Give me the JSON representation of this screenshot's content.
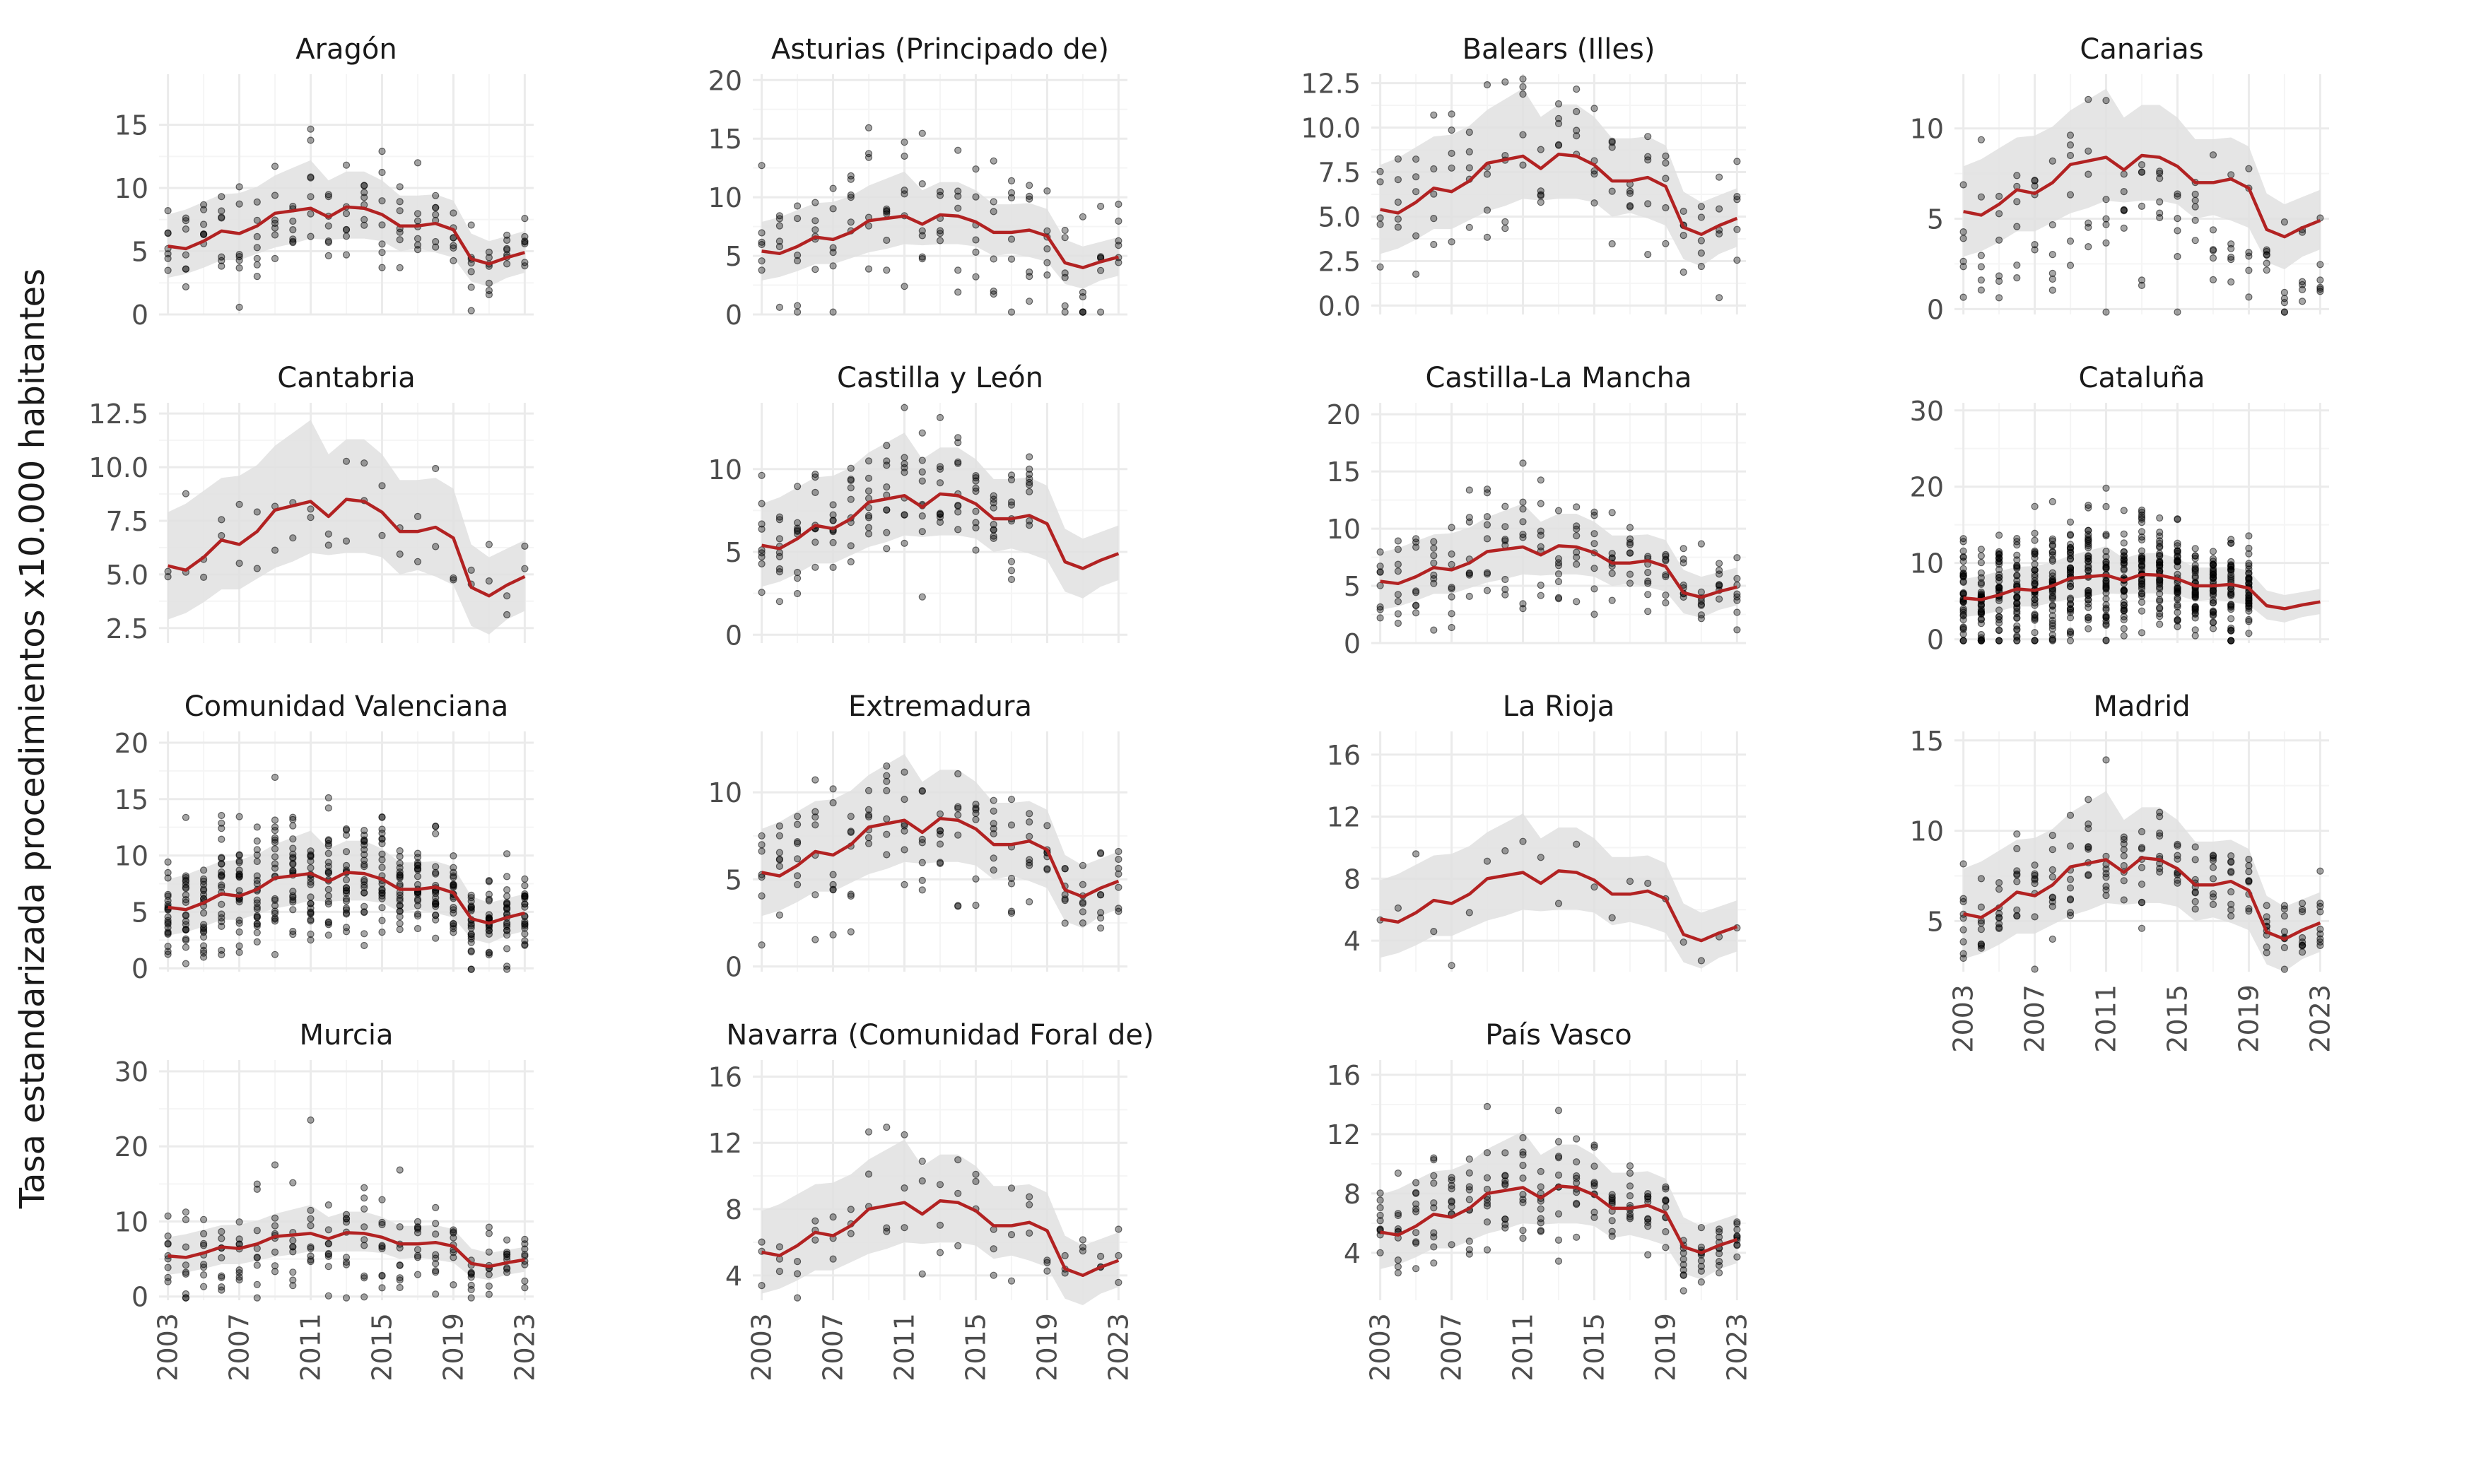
{
  "figure": {
    "ylabel": "Tasa estandarizada procedimientos x10.000 habitantes",
    "colors": {
      "trend": "#b22222",
      "band": "#e0e0e0",
      "points": "#000000",
      "grid_major": "#ebebeb",
      "grid_minor": "#f5f5f5",
      "text": "#4d4d4d"
    }
  },
  "chart_data": [
    {
      "type": "scatter",
      "title": "Aragón",
      "xlim": [
        2002.5,
        2023.5
      ],
      "ylim": [
        0,
        19
      ],
      "yticks": [
        0,
        5,
        10,
        15
      ],
      "xticks": [
        2003,
        2007,
        2011,
        2015,
        2019,
        2023
      ],
      "seed": 11,
      "pointsPerYear": 7,
      "spread": 2.4
    },
    {
      "type": "scatter",
      "title": "Asturias (Principado de)",
      "xlim": [
        2002.5,
        2023.5
      ],
      "ylim": [
        0,
        20.5
      ],
      "yticks": [
        0,
        5,
        10,
        15,
        20
      ],
      "xticks": [
        2003,
        2007,
        2011,
        2015,
        2019,
        2023
      ],
      "seed": 22,
      "pointsPerYear": 6,
      "spread": 3.6
    },
    {
      "type": "scatter",
      "title": "Balears (Illes)",
      "xlim": [
        2002.5,
        2023.5
      ],
      "ylim": [
        -0.5,
        13
      ],
      "yticks": [
        0.0,
        2.5,
        5.0,
        7.5,
        10.0,
        12.5
      ],
      "ytickDecimals": 1,
      "xticks": [
        2003,
        2007,
        2011,
        2015,
        2019,
        2023
      ],
      "seed": 33,
      "pointsPerYear": 5,
      "spread": 2.3
    },
    {
      "type": "scatter",
      "title": "Canarias",
      "xlim": [
        2002.5,
        2023.5
      ],
      "ylim": [
        -0.3,
        13
      ],
      "yticks": [
        0,
        5,
        10
      ],
      "xticks": [
        2003,
        2007,
        2011,
        2015,
        2019,
        2023
      ],
      "seed": 44,
      "pointsPerYear": 6,
      "spread": 3.0,
      "offset": -2.5
    },
    {
      "type": "scatter",
      "title": "Cantabria",
      "xlim": [
        2002.5,
        2023.5
      ],
      "ylim": [
        1.8,
        13
      ],
      "yticks": [
        2.5,
        5.0,
        7.5,
        10.0,
        12.5
      ],
      "ytickDecimals": 1,
      "xticks": [
        2003,
        2007,
        2011,
        2015,
        2019,
        2023
      ],
      "seed": 55,
      "pointsPerYear": 2,
      "spread": 1.6
    },
    {
      "type": "scatter",
      "title": "Castilla y León",
      "xlim": [
        2002.5,
        2023.5
      ],
      "ylim": [
        -0.5,
        14
      ],
      "yticks": [
        0,
        5,
        10
      ],
      "xticks": [
        2003,
        2007,
        2011,
        2015,
        2019,
        2023
      ],
      "seed": 66,
      "pointsPerYear": 9,
      "spread": 2.0,
      "yearMax": 2018
    },
    {
      "type": "scatter",
      "title": "Castilla-La Mancha",
      "xlim": [
        2002.5,
        2023.5
      ],
      "ylim": [
        0,
        21
      ],
      "yticks": [
        0,
        5,
        10,
        15,
        20
      ],
      "xticks": [
        2003,
        2007,
        2011,
        2015,
        2019,
        2023
      ],
      "seed": 77,
      "pointsPerYear": 8,
      "spread": 3.2
    },
    {
      "type": "scatter",
      "title": "Cataluña",
      "xlim": [
        2002.5,
        2023.5
      ],
      "ylim": [
        -0.5,
        31
      ],
      "yticks": [
        0,
        10,
        20,
        30
      ],
      "xticks": [
        2003,
        2007,
        2011,
        2015,
        2019,
        2023
      ],
      "seed": 88,
      "pointsPerYear": 38,
      "spread": 4.0,
      "yearMax": 2019
    },
    {
      "type": "scatter",
      "title": "Comunidad Valenciana",
      "xlim": [
        2002.5,
        2023.5
      ],
      "ylim": [
        -0.3,
        21
      ],
      "yticks": [
        0,
        5,
        10,
        15,
        20
      ],
      "xticks": [
        2003,
        2007,
        2011,
        2015,
        2019,
        2023
      ],
      "seed": 99,
      "pointsPerYear": 22,
      "spread": 3.0
    },
    {
      "type": "scatter",
      "title": "Extremadura",
      "xlim": [
        2002.5,
        2023.5
      ],
      "ylim": [
        -0.3,
        13.5
      ],
      "yticks": [
        0,
        5,
        10
      ],
      "xticks": [
        2003,
        2007,
        2011,
        2015,
        2019,
        2023
      ],
      "seed": 110,
      "pointsPerYear": 7,
      "spread": 2.3
    },
    {
      "type": "scatter",
      "title": "La Rioja",
      "xlim": [
        2002.5,
        2023.5
      ],
      "ylim": [
        2,
        17.5
      ],
      "yticks": [
        4,
        8,
        12,
        16
      ],
      "xticks": [
        2003,
        2007,
        2011,
        2015,
        2019,
        2023
      ],
      "seed": 121,
      "pointsPerYear": 1,
      "spread": 1.8
    },
    {
      "type": "scatter",
      "title": "Madrid",
      "xlim": [
        2002.5,
        2023.5
      ],
      "ylim": [
        2.2,
        15.5
      ],
      "yticks": [
        5,
        10,
        15
      ],
      "xticks": [
        2003,
        2007,
        2011,
        2015,
        2019,
        2023
      ],
      "seed": 132,
      "pointsPerYear": 9,
      "spread": 1.6
    },
    {
      "type": "scatter",
      "title": "Murcia",
      "xlim": [
        2002.5,
        2023.5
      ],
      "ylim": [
        -0.5,
        31.5
      ],
      "yticks": [
        0,
        10,
        20,
        30
      ],
      "xticks": [
        2003,
        2007,
        2011,
        2015,
        2019,
        2023
      ],
      "seed": 143,
      "pointsPerYear": 9,
      "spread": 3.8
    },
    {
      "type": "scatter",
      "title": "Navarra (Comunidad Foral de)",
      "xlim": [
        2002.5,
        2023.5
      ],
      "ylim": [
        2.5,
        17
      ],
      "yticks": [
        4,
        8,
        12,
        16
      ],
      "xticks": [
        2003,
        2007,
        2011,
        2015,
        2019,
        2023
      ],
      "seed": 154,
      "pointsPerYear": 3,
      "spread": 2.0
    },
    {
      "type": "scatter",
      "title": "País Vasco",
      "xlim": [
        2002.5,
        2023.5
      ],
      "ylim": [
        0.8,
        17
      ],
      "yticks": [
        4,
        8,
        12,
        16
      ],
      "xticks": [
        2003,
        2007,
        2011,
        2015,
        2019,
        2023
      ],
      "seed": 165,
      "pointsPerYear": 10,
      "spread": 2.0
    }
  ],
  "national_trend": {
    "years": [
      2003,
      2004,
      2005,
      2006,
      2007,
      2008,
      2009,
      2010,
      2011,
      2012,
      2013,
      2014,
      2015,
      2016,
      2017,
      2018,
      2019,
      2020,
      2021,
      2022,
      2023
    ],
    "mean": [
      5.4,
      5.2,
      5.8,
      6.6,
      6.4,
      7.0,
      8.0,
      8.2,
      8.4,
      7.7,
      8.5,
      8.4,
      7.9,
      7.0,
      7.0,
      7.2,
      6.7,
      4.4,
      4.0,
      4.5,
      4.9
    ],
    "lower": [
      2.9,
      3.2,
      3.7,
      4.3,
      4.3,
      4.8,
      5.3,
      5.6,
      6.0,
      5.9,
      6.0,
      6.0,
      5.8,
      5.0,
      5.2,
      4.9,
      4.5,
      2.6,
      2.2,
      2.9,
      3.3
    ],
    "upper": [
      7.9,
      8.3,
      8.9,
      9.5,
      9.6,
      10.1,
      11.0,
      11.6,
      12.2,
      10.6,
      11.3,
      11.3,
      10.6,
      9.4,
      9.4,
      9.5,
      9.0,
      6.4,
      5.8,
      6.2,
      6.6
    ]
  }
}
